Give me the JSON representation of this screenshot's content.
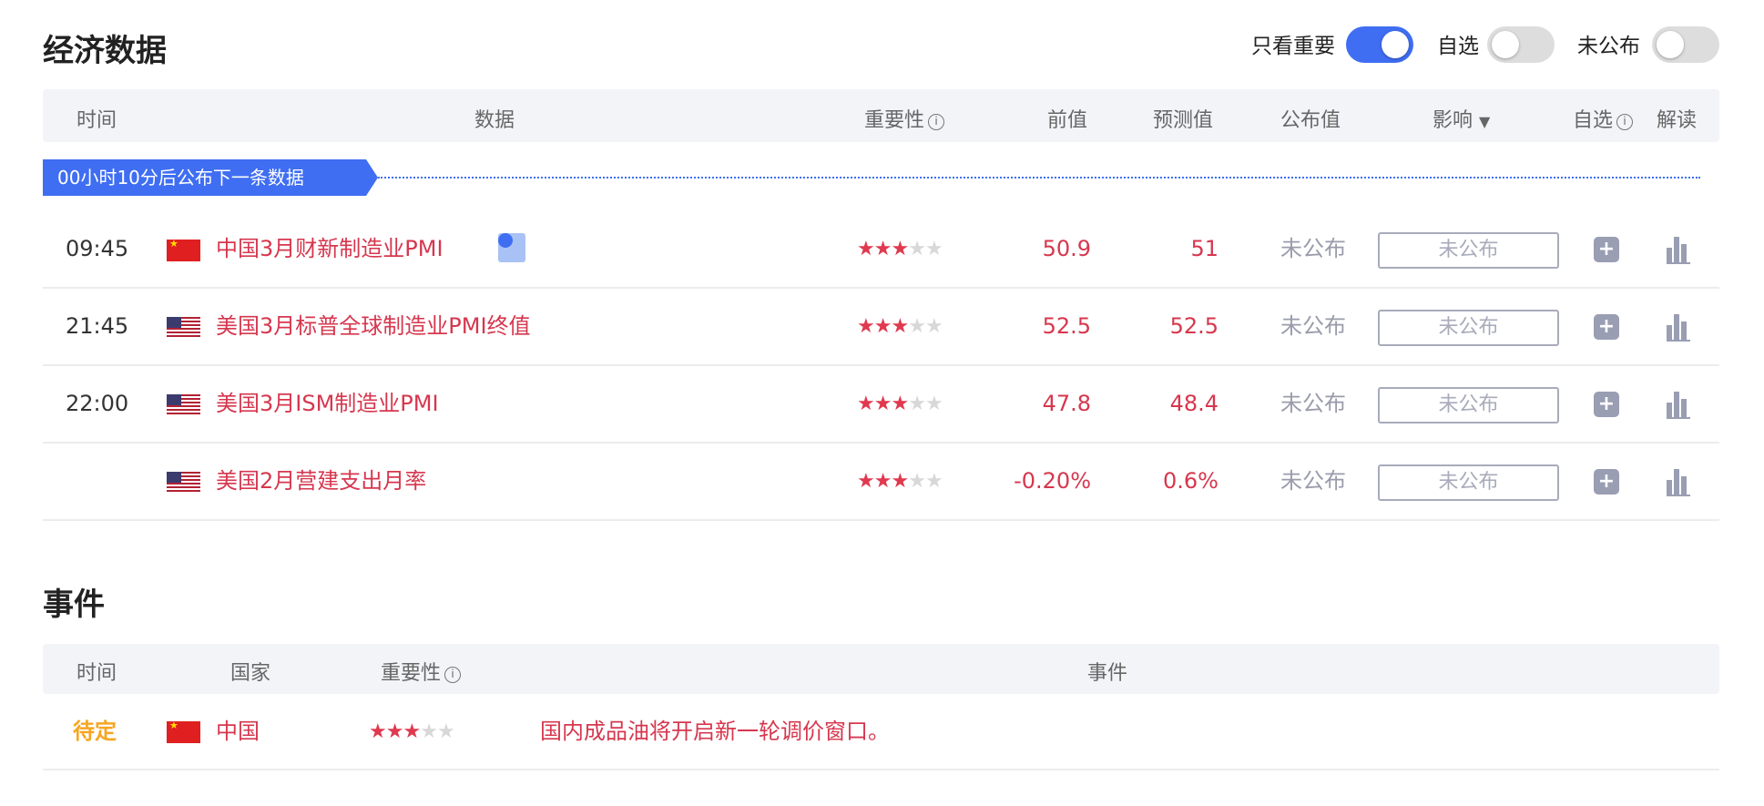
{
  "economic": {
    "title": "经济数据",
    "toggles": [
      {
        "label": "只看重要",
        "on": true
      },
      {
        "label": "自选",
        "on": false
      },
      {
        "label": "未公布",
        "on": false
      }
    ],
    "headers": {
      "time": "时间",
      "data": "数据",
      "importance": "重要性",
      "previous": "前值",
      "forecast": "预测值",
      "actual": "公布值",
      "impact": "影响",
      "watch": "自选",
      "analysis": "解读"
    },
    "banner": "00小时10分后公布下一条数据",
    "rows": [
      {
        "time": "09:45",
        "country": "china",
        "name": "中国3月财新制造业PMI",
        "stars": 3,
        "previous": "50.9",
        "forecast": "51",
        "actual": "未公布",
        "impact": "未公布",
        "has_video": true
      },
      {
        "time": "21:45",
        "country": "usa",
        "name": "美国3月标普全球制造业PMI终值",
        "stars": 3,
        "previous": "52.5",
        "forecast": "52.5",
        "actual": "未公布",
        "impact": "未公布"
      },
      {
        "time": "22:00",
        "country": "usa",
        "name": "美国3月ISM制造业PMI",
        "stars": 3,
        "previous": "47.8",
        "forecast": "48.4",
        "actual": "未公布",
        "impact": "未公布"
      },
      {
        "time": "",
        "country": "usa",
        "name": "美国2月营建支出月率",
        "stars": 3,
        "previous": "-0.20%",
        "forecast": "0.6%",
        "actual": "未公布",
        "impact": "未公布"
      }
    ]
  },
  "events": {
    "title": "事件",
    "headers": {
      "time": "时间",
      "country": "国家",
      "importance": "重要性",
      "event": "事件"
    },
    "rows": [
      {
        "time": "待定",
        "country": "china",
        "country_name": "中国",
        "stars": 3,
        "event": "国内成品油将开启新一轮调价窗口。"
      }
    ]
  },
  "colors": {
    "accent": "#3f6ef2",
    "value_red": "#d6374e",
    "pending_orange": "#f5a623"
  }
}
